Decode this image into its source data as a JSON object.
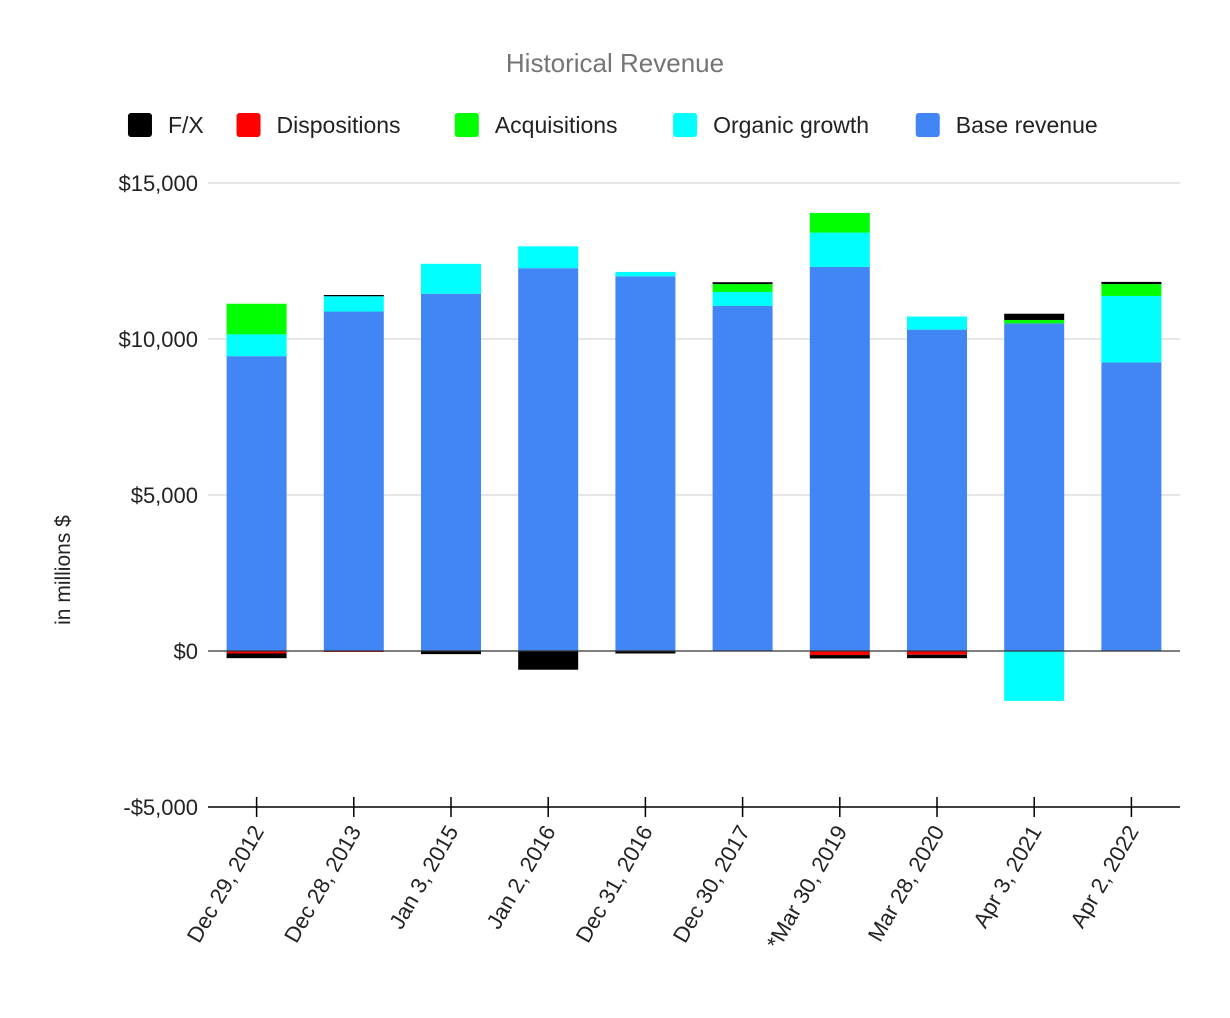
{
  "chart_data": {
    "type": "bar",
    "stacked": true,
    "title": "Historical Revenue",
    "xlabel": "",
    "ylabel": "in millions $",
    "ylim": [
      -5000,
      15000
    ],
    "yticks": [
      15000,
      10000,
      5000,
      0,
      -5000
    ],
    "ytick_labels": [
      "$15,000",
      "$10,000",
      "$5,000",
      "$0",
      "-$5,000"
    ],
    "grid": true,
    "legend_position": "top",
    "categories": [
      "Dec 29, 2012",
      "Dec 28, 2013",
      "Jan 3, 2015",
      "Jan 2, 2016",
      "Dec 31, 2016",
      "Dec 30, 2017",
      "*Mar 30, 2019",
      "Mar 28, 2020",
      "Apr 3, 2021",
      "Apr 2, 2022"
    ],
    "legend_order": [
      "F/X",
      "Dispositions",
      "Acquisitions",
      "Organic growth",
      "Base revenue"
    ],
    "series": [
      {
        "name": "Base revenue",
        "color": "#4285f4",
        "values": [
          9450,
          10880,
          11450,
          12270,
          12010,
          11060,
          12310,
          10300,
          10500,
          9250
        ]
      },
      {
        "name": "Organic growth",
        "color": "#00ffff",
        "values": [
          700,
          490,
          960,
          700,
          140,
          450,
          1100,
          420,
          -1600,
          2130
        ]
      },
      {
        "name": "Acquisitions",
        "color": "#00ff00",
        "values": [
          980,
          0,
          0,
          0,
          0,
          250,
          630,
          0,
          110,
          380
        ]
      },
      {
        "name": "Dispositions",
        "color": "#ff0000",
        "values": [
          -80,
          -30,
          0,
          0,
          0,
          0,
          -130,
          -120,
          0,
          0
        ]
      },
      {
        "name": "F/X",
        "color": "#000000",
        "values": [
          -150,
          40,
          -100,
          -600,
          -80,
          60,
          -110,
          -110,
          200,
          70
        ]
      }
    ]
  }
}
